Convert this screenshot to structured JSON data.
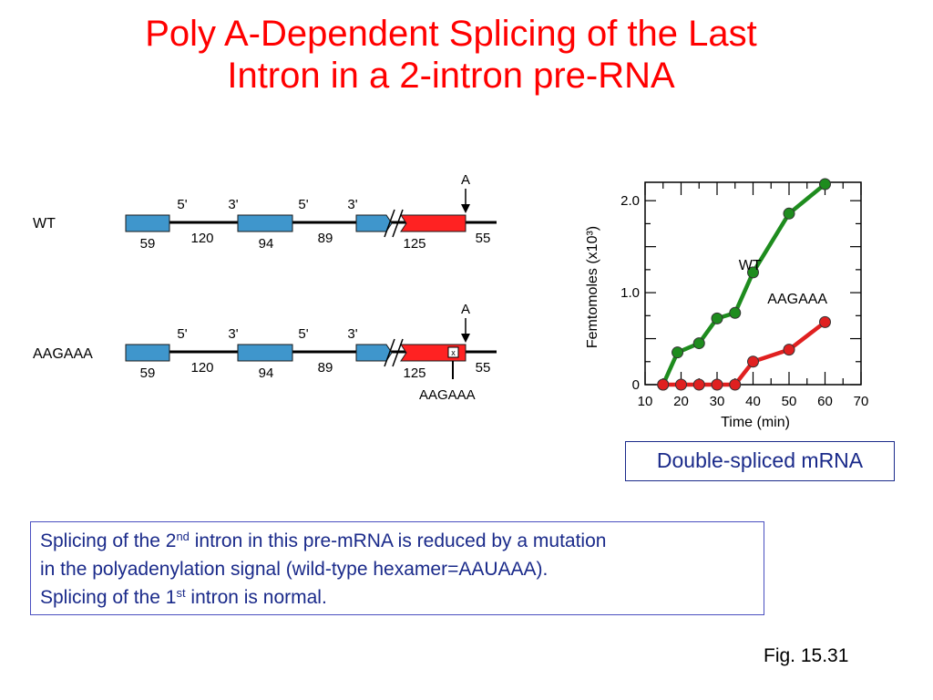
{
  "title": {
    "line1": "Poly A-Dependent Splicing of the Last",
    "line2": "Intron in a 2-intron pre-RNA"
  },
  "diagram": {
    "rows": [
      {
        "name": "WT",
        "upper_labels": [
          "5'",
          "3'",
          "5'",
          "3'"
        ],
        "polyA_site_label": "A",
        "lower_labels": [
          "59",
          "120",
          "94",
          "89",
          "125",
          "55"
        ]
      },
      {
        "name": "AAGAAA",
        "upper_labels": [
          "5'",
          "3'",
          "5'",
          "3'"
        ],
        "polyA_site_label": "A",
        "lower_labels": [
          "59",
          "120",
          "94",
          "89",
          "125",
          "55"
        ],
        "mutation_marker": "x",
        "mutation_label": "AAGAAA"
      }
    ],
    "colors": {
      "exon": "#3f96cc",
      "last_exon": "#ff2222"
    }
  },
  "chart_data": {
    "type": "line",
    "xlabel": "Time (min)",
    "ylabel": "Femtomoles (x10³)",
    "xlim": [
      10,
      70
    ],
    "ylim": [
      0,
      2.2
    ],
    "x_ticks": [
      10,
      20,
      30,
      40,
      50,
      60,
      70
    ],
    "y_ticks": [
      {
        "value": 0,
        "label": "0"
      },
      {
        "value": 1.0,
        "label": "1.0"
      },
      {
        "value": 2.0,
        "label": "2.0"
      }
    ],
    "series": [
      {
        "name": "WT",
        "color": "#1e8c1e",
        "x": [
          15,
          19,
          25,
          30,
          35,
          40,
          50,
          60
        ],
        "y": [
          0,
          0.35,
          0.45,
          0.72,
          0.78,
          1.22,
          1.86,
          2.18
        ]
      },
      {
        "name": "AAGAAA",
        "color": "#e02020",
        "x": [
          15,
          20,
          25,
          30,
          35,
          40,
          50,
          60
        ],
        "y": [
          0,
          0,
          0,
          0,
          0,
          0.25,
          0.38,
          0.68
        ]
      }
    ]
  },
  "caption": "Double-spliced mRNA",
  "note": {
    "line1_a": "Splicing of the 2",
    "line1_sup": "nd",
    "line1_b": " intron in this pre-mRNA is reduced by a mutation",
    "line2": "in the polyadenylation signal (wild-type hexamer=AAUAAA).",
    "line3_a": "Splicing of the 1",
    "line3_sup": "st",
    "line3_b": " intron is normal."
  },
  "figure_label": "Fig. 15.31"
}
